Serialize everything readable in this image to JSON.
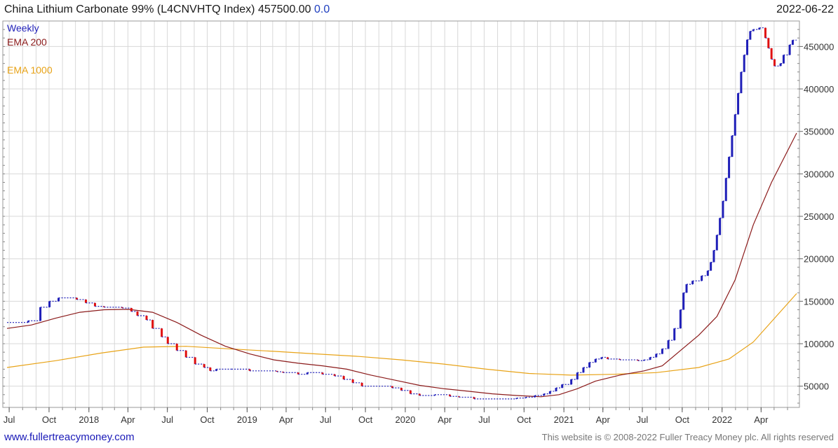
{
  "header": {
    "title": "China Lithium Carbonate 99% (L4CNVHTQ Index) 457500.00",
    "change": "0.0",
    "date": "2022-06-22"
  },
  "legend": {
    "weekly": "Weekly",
    "ema200": "EMA 200",
    "ema1000": "EMA 1000"
  },
  "footer": {
    "site": "www.fullertreacymoney.com",
    "copyright": "This website is © 2008-2022 Fuller Treacy Money plc. All rights reserved"
  },
  "colors": {
    "up": "#1f1fb8",
    "down": "#e01010",
    "ema200": "#8b1a1a",
    "ema1000": "#e8a317",
    "grid": "#d8d8d8"
  },
  "chart_data": {
    "type": "line",
    "ylim": [
      25000,
      480000
    ],
    "xlim": [
      "2017-06-26",
      "2022-06-22"
    ],
    "grid": true,
    "legend_position": "top-left",
    "y_ticks": [
      50000,
      100000,
      150000,
      200000,
      250000,
      300000,
      350000,
      400000,
      450000
    ],
    "y_tick_labels": [
      "50000",
      "100000",
      "150000",
      "200000",
      "250000",
      "300000",
      "350000",
      "400000",
      "450000"
    ],
    "x_ticks": [
      {
        "date": "2017-07-01",
        "label": "Jul"
      },
      {
        "date": "2017-10-01",
        "label": "Oct"
      },
      {
        "date": "2018-01-01",
        "label": "2018"
      },
      {
        "date": "2018-04-01",
        "label": "Apr"
      },
      {
        "date": "2018-07-01",
        "label": "Jul"
      },
      {
        "date": "2018-10-01",
        "label": "Oct"
      },
      {
        "date": "2019-01-01",
        "label": "2019"
      },
      {
        "date": "2019-04-01",
        "label": "Apr"
      },
      {
        "date": "2019-07-01",
        "label": "Jul"
      },
      {
        "date": "2019-10-01",
        "label": "Oct"
      },
      {
        "date": "2020-01-01",
        "label": "2020"
      },
      {
        "date": "2020-04-01",
        "label": "Apr"
      },
      {
        "date": "2020-07-01",
        "label": "Jul"
      },
      {
        "date": "2020-10-01",
        "label": "Oct"
      },
      {
        "date": "2021-01-01",
        "label": "2021"
      },
      {
        "date": "2021-04-01",
        "label": "Apr"
      },
      {
        "date": "2021-07-01",
        "label": "Jul"
      },
      {
        "date": "2021-10-01",
        "label": "Oct"
      },
      {
        "date": "2022-01-01",
        "label": "2022"
      },
      {
        "date": "2022-04-01",
        "label": "Apr"
      }
    ],
    "series": [
      {
        "name": "Weekly",
        "style": "step",
        "points": [
          [
            "2017-06-26",
            125000
          ],
          [
            "2017-08-14",
            127000
          ],
          [
            "2017-09-11",
            143000
          ],
          [
            "2017-10-02",
            150000
          ],
          [
            "2017-10-23",
            154000
          ],
          [
            "2017-12-04",
            152000
          ],
          [
            "2017-12-25",
            148000
          ],
          [
            "2018-01-15",
            144000
          ],
          [
            "2018-02-05",
            143000
          ],
          [
            "2018-03-19",
            142000
          ],
          [
            "2018-04-09",
            138000
          ],
          [
            "2018-04-23",
            133000
          ],
          [
            "2018-05-14",
            128000
          ],
          [
            "2018-05-28",
            118000
          ],
          [
            "2018-06-18",
            108000
          ],
          [
            "2018-07-02",
            100000
          ],
          [
            "2018-07-23",
            92000
          ],
          [
            "2018-08-13",
            84000
          ],
          [
            "2018-09-03",
            76000
          ],
          [
            "2018-09-24",
            72000
          ],
          [
            "2018-10-08",
            68000
          ],
          [
            "2018-10-22",
            70000
          ],
          [
            "2018-11-26",
            70000
          ],
          [
            "2019-01-07",
            68000
          ],
          [
            "2019-03-11",
            67000
          ],
          [
            "2019-03-25",
            66000
          ],
          [
            "2019-04-29",
            64000
          ],
          [
            "2019-05-20",
            66000
          ],
          [
            "2019-06-24",
            64000
          ],
          [
            "2019-07-22",
            62000
          ],
          [
            "2019-08-12",
            58000
          ],
          [
            "2019-09-02",
            54000
          ],
          [
            "2019-09-23",
            50000
          ],
          [
            "2019-12-02",
            48000
          ],
          [
            "2019-12-23",
            45000
          ],
          [
            "2020-01-13",
            41000
          ],
          [
            "2020-02-03",
            39000
          ],
          [
            "2020-03-09",
            40000
          ],
          [
            "2020-04-13",
            38000
          ],
          [
            "2020-05-04",
            37000
          ],
          [
            "2020-06-08",
            35000
          ],
          [
            "2020-09-14",
            36000
          ],
          [
            "2020-10-05",
            37000
          ],
          [
            "2020-10-26",
            39000
          ],
          [
            "2020-11-16",
            41000
          ],
          [
            "2020-11-30",
            44000
          ],
          [
            "2020-12-14",
            48000
          ],
          [
            "2020-12-28",
            52000
          ],
          [
            "2021-01-18",
            58000
          ],
          [
            "2021-02-01",
            66000
          ],
          [
            "2021-02-15",
            72000
          ],
          [
            "2021-03-01",
            78000
          ],
          [
            "2021-03-15",
            82000
          ],
          [
            "2021-03-29",
            84000
          ],
          [
            "2021-04-12",
            82000
          ],
          [
            "2021-05-10",
            81000
          ],
          [
            "2021-06-21",
            80000
          ],
          [
            "2021-07-05",
            81000
          ],
          [
            "2021-07-19",
            84000
          ],
          [
            "2021-08-02",
            88000
          ],
          [
            "2021-08-16",
            94000
          ],
          [
            "2021-08-30",
            104000
          ],
          [
            "2021-09-13",
            118000
          ],
          [
            "2021-09-27",
            140000
          ],
          [
            "2021-10-04",
            160000
          ],
          [
            "2021-10-11",
            170000
          ],
          [
            "2021-10-25",
            174000
          ],
          [
            "2021-11-15",
            180000
          ],
          [
            "2021-11-29",
            186000
          ],
          [
            "2021-12-06",
            196000
          ],
          [
            "2021-12-13",
            210000
          ],
          [
            "2021-12-20",
            228000
          ],
          [
            "2021-12-27",
            248000
          ],
          [
            "2022-01-03",
            268000
          ],
          [
            "2022-01-10",
            295000
          ],
          [
            "2022-01-17",
            320000
          ],
          [
            "2022-01-24",
            345000
          ],
          [
            "2022-01-31",
            370000
          ],
          [
            "2022-02-07",
            395000
          ],
          [
            "2022-02-14",
            420000
          ],
          [
            "2022-02-21",
            440000
          ],
          [
            "2022-02-28",
            458000
          ],
          [
            "2022-03-07",
            468000
          ],
          [
            "2022-03-14",
            470000
          ],
          [
            "2022-03-28",
            472000
          ],
          [
            "2022-04-11",
            460000
          ],
          [
            "2022-04-18",
            448000
          ],
          [
            "2022-04-25",
            435000
          ],
          [
            "2022-05-02",
            427000
          ],
          [
            "2022-05-16",
            430000
          ],
          [
            "2022-05-23",
            440000
          ],
          [
            "2022-06-06",
            452000
          ],
          [
            "2022-06-13",
            457500
          ],
          [
            "2022-06-22",
            457500
          ]
        ]
      },
      {
        "name": "EMA 200",
        "style": "line",
        "points": [
          [
            "2017-06-26",
            118000
          ],
          [
            "2017-08-21",
            122000
          ],
          [
            "2017-10-16",
            130000
          ],
          [
            "2017-12-11",
            137000
          ],
          [
            "2018-02-05",
            140000
          ],
          [
            "2018-04-02",
            140500
          ],
          [
            "2018-05-28",
            137000
          ],
          [
            "2018-07-23",
            125000
          ],
          [
            "2018-09-17",
            110000
          ],
          [
            "2018-11-12",
            97000
          ],
          [
            "2019-01-07",
            88000
          ],
          [
            "2019-03-04",
            81000
          ],
          [
            "2019-04-29",
            77000
          ],
          [
            "2019-06-24",
            74000
          ],
          [
            "2019-08-19",
            70000
          ],
          [
            "2019-10-14",
            63000
          ],
          [
            "2019-12-09",
            57000
          ],
          [
            "2020-02-03",
            51000
          ],
          [
            "2020-03-30",
            47000
          ],
          [
            "2020-05-25",
            44000
          ],
          [
            "2020-07-20",
            41000
          ],
          [
            "2020-09-14",
            39000
          ],
          [
            "2020-11-09",
            37500
          ],
          [
            "2020-12-21",
            40000
          ],
          [
            "2021-02-01",
            47000
          ],
          [
            "2021-03-15",
            56000
          ],
          [
            "2021-05-10",
            63000
          ],
          [
            "2021-07-05",
            68000
          ],
          [
            "2021-08-16",
            74000
          ],
          [
            "2021-09-27",
            92000
          ],
          [
            "2021-11-08",
            110000
          ],
          [
            "2021-12-20",
            132000
          ],
          [
            "2022-01-31",
            175000
          ],
          [
            "2022-03-14",
            240000
          ],
          [
            "2022-04-25",
            290000
          ],
          [
            "2022-06-22",
            348000
          ]
        ]
      },
      {
        "name": "EMA 1000",
        "style": "line",
        "points": [
          [
            "2017-06-26",
            72000
          ],
          [
            "2017-10-16",
            80000
          ],
          [
            "2018-01-29",
            89000
          ],
          [
            "2018-05-07",
            96000
          ],
          [
            "2018-08-13",
            97000
          ],
          [
            "2018-11-19",
            94000
          ],
          [
            "2019-03-04",
            91000
          ],
          [
            "2019-06-10",
            88000
          ],
          [
            "2019-09-16",
            85000
          ],
          [
            "2019-12-23",
            81000
          ],
          [
            "2020-03-30",
            76000
          ],
          [
            "2020-07-06",
            70000
          ],
          [
            "2020-10-12",
            65000
          ],
          [
            "2021-01-18",
            63000
          ],
          [
            "2021-04-26",
            64000
          ],
          [
            "2021-08-02",
            66000
          ],
          [
            "2021-11-08",
            72000
          ],
          [
            "2022-01-17",
            82000
          ],
          [
            "2022-03-14",
            102000
          ],
          [
            "2022-05-02",
            130000
          ],
          [
            "2022-06-22",
            159000
          ]
        ]
      }
    ]
  }
}
